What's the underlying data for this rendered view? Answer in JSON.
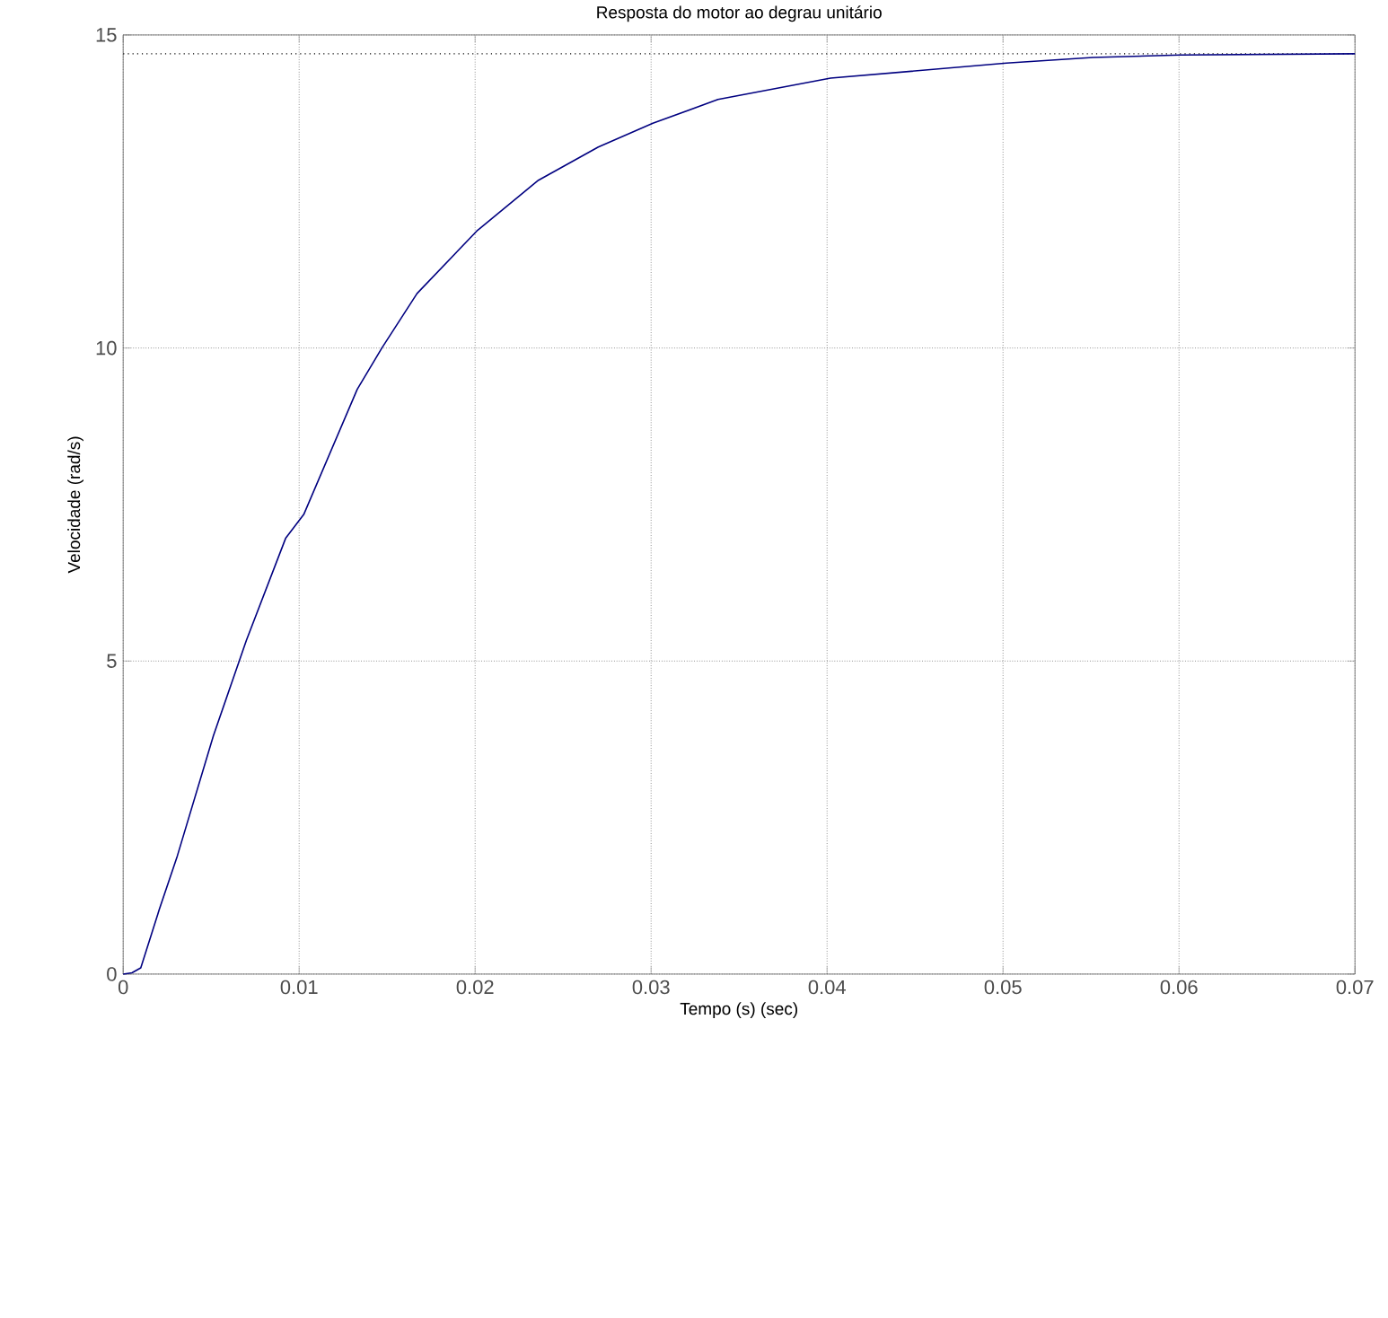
{
  "chart_data": {
    "type": "line",
    "title": "Resposta do motor ao degrau unitário",
    "xlabel": "Tempo (s) (sec)",
    "ylabel": "Velocidade (rad/s)",
    "x": [
      0,
      0.0005,
      0.001,
      0.00205,
      0.00308,
      0.00513,
      0.007,
      0.00923,
      0.01026,
      0.0133,
      0.0147,
      0.0167,
      0.0201,
      0.0236,
      0.027,
      0.0301,
      0.0338,
      0.0402,
      0.0502,
      0.0551,
      0.0601,
      0.07
    ],
    "series": [
      {
        "color": "#000080",
        "values": [
          0,
          0.02,
          0.1,
          1.03,
          1.89,
          3.81,
          5.33,
          6.96,
          7.34,
          9.34,
          10.0,
          10.87,
          11.87,
          12.68,
          13.21,
          13.59,
          13.97,
          14.31,
          14.55,
          14.64,
          14.68,
          14.7
        ]
      }
    ],
    "xlim": [
      0,
      0.07
    ],
    "ylim": [
      0,
      15
    ],
    "xticks": [
      0,
      0.01,
      0.02,
      0.03,
      0.04,
      0.05,
      0.06,
      0.07
    ],
    "yticks": [
      0,
      5,
      10,
      15
    ],
    "grid": true,
    "line_style": "solid",
    "marker": "none",
    "ref_lines": [
      {
        "axis": "y",
        "value": 14.7,
        "color": "#000000",
        "line_style": "dotted"
      }
    ]
  }
}
